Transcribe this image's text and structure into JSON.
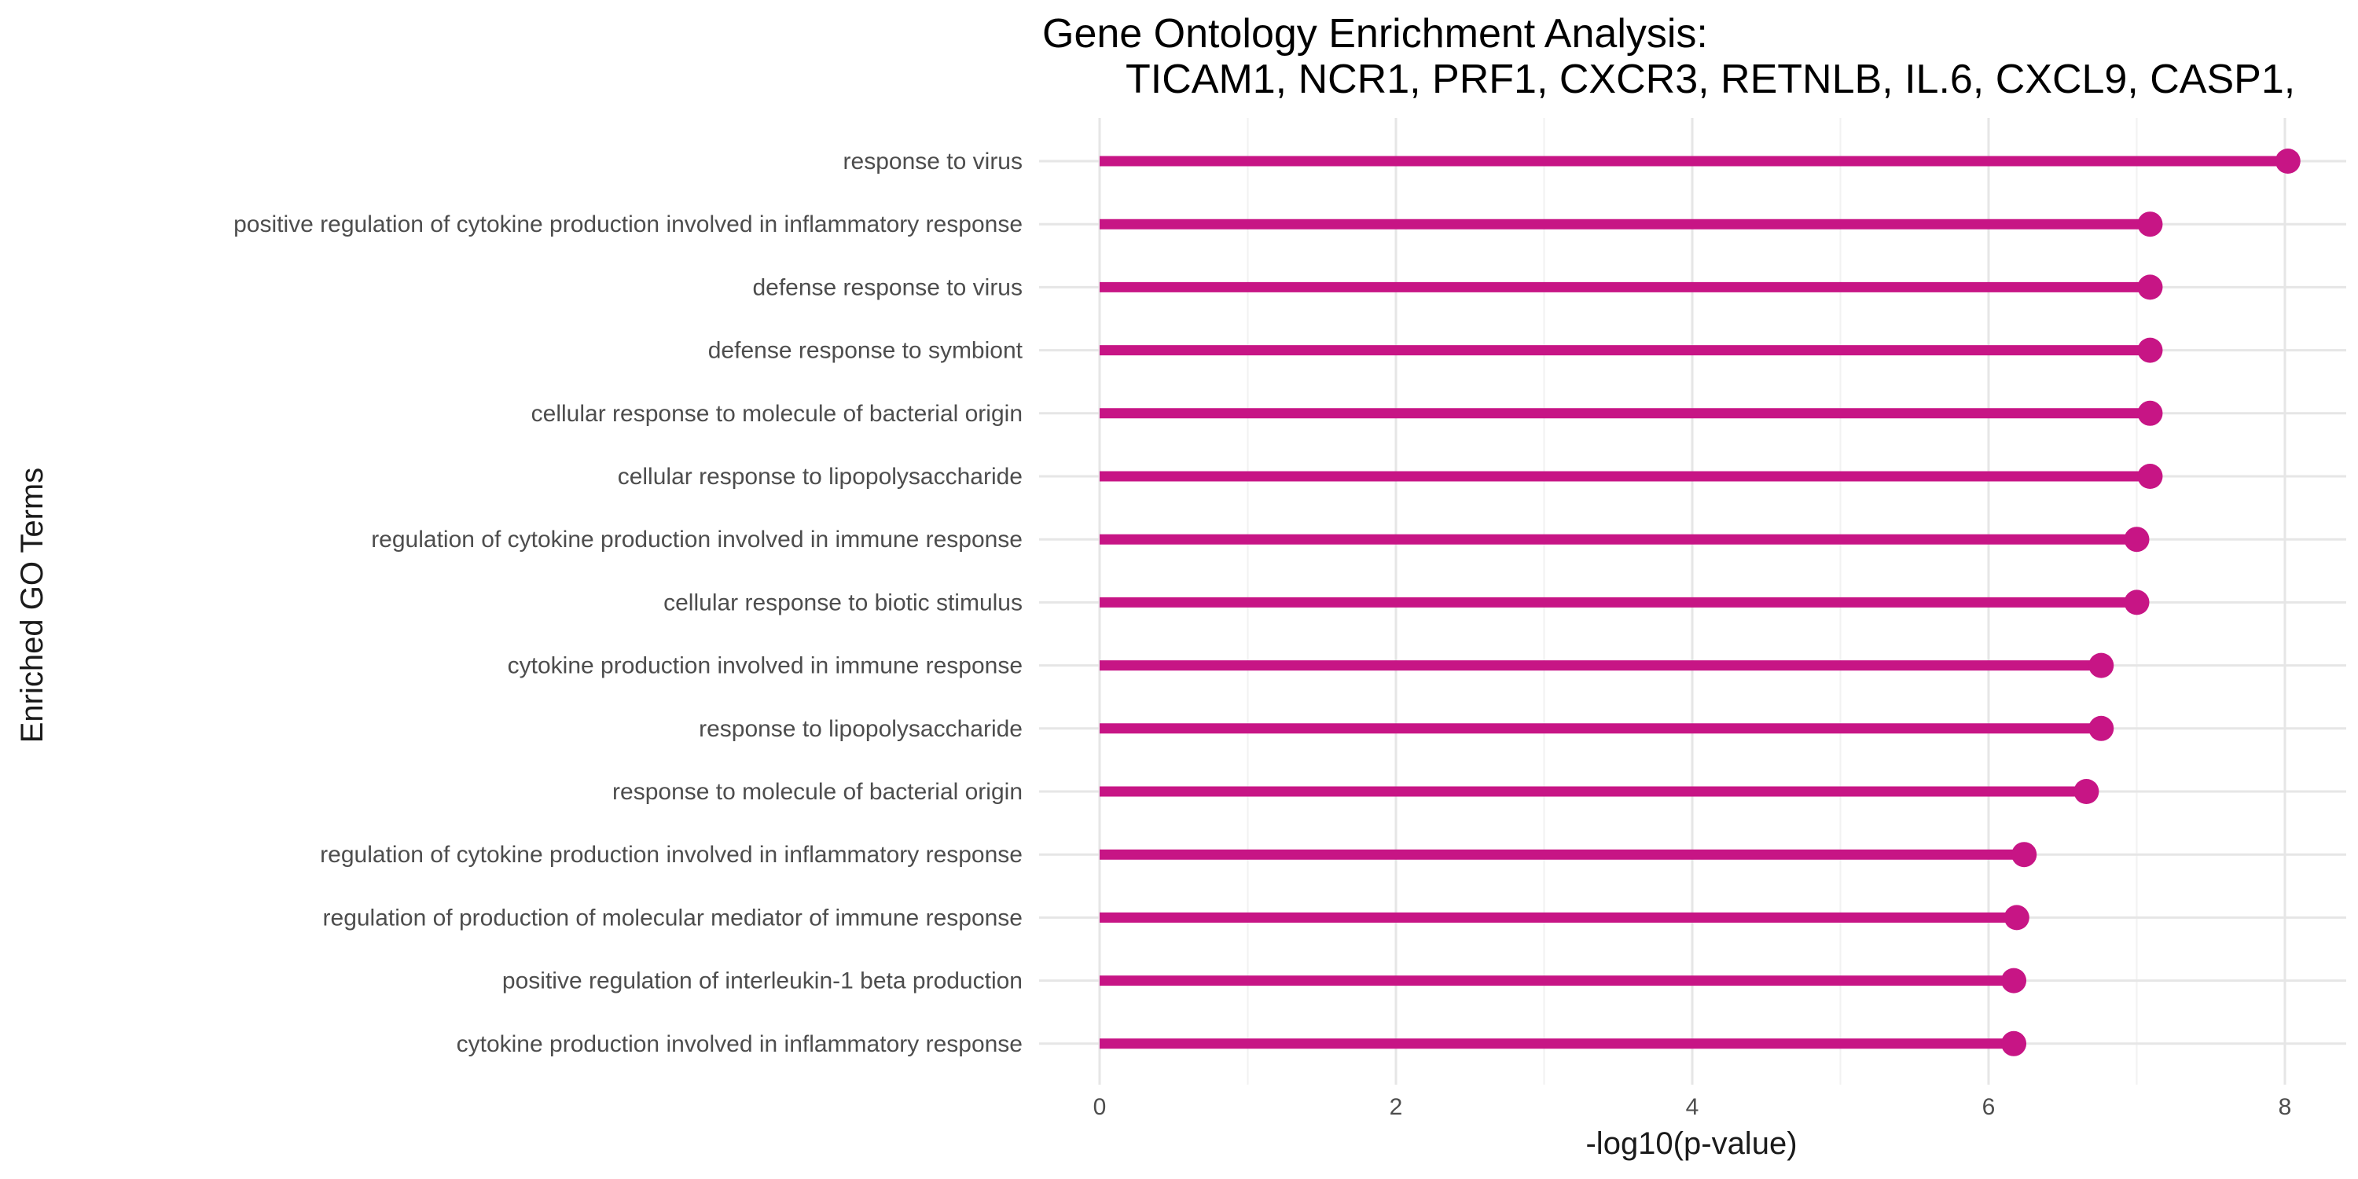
{
  "chart_data": {
    "type": "lollipop",
    "title_line1": "Gene Ontology Enrichment Analysis:",
    "title_line2": "TICAM1, NCR1, PRF1, CXCR3, RETNLB, IL.6, CXCL9, CASP1,",
    "xlabel": "-log10(p-value)",
    "ylabel": "Enriched GO Terms",
    "xlim": [
      -0.4,
      8.4
    ],
    "xticks": [
      0,
      2,
      4,
      6,
      8
    ],
    "xtick_labels": [
      "0",
      "2",
      "4",
      "6",
      "8"
    ],
    "grid": true,
    "color": "#C71585",
    "categories": [
      "response to virus",
      "positive regulation of cytokine production involved in inflammatory response",
      "defense response to virus",
      "defense response to symbiont",
      "cellular response to molecule of bacterial origin",
      "cellular response to lipopolysaccharide",
      "regulation of cytokine production involved in immune response",
      "cellular response to biotic stimulus",
      "cytokine production involved in immune response",
      "response to lipopolysaccharide",
      "response to molecule of bacterial origin",
      "regulation of cytokine production involved in inflammatory response",
      "regulation of production of molecular mediator of immune response",
      "positive regulation of interleukin-1 beta production",
      "cytokine production involved in inflammatory response"
    ],
    "values": [
      8.02,
      7.09,
      7.09,
      7.09,
      7.09,
      7.09,
      7.0,
      7.0,
      6.76,
      6.76,
      6.66,
      6.24,
      6.19,
      6.17,
      6.17
    ]
  }
}
